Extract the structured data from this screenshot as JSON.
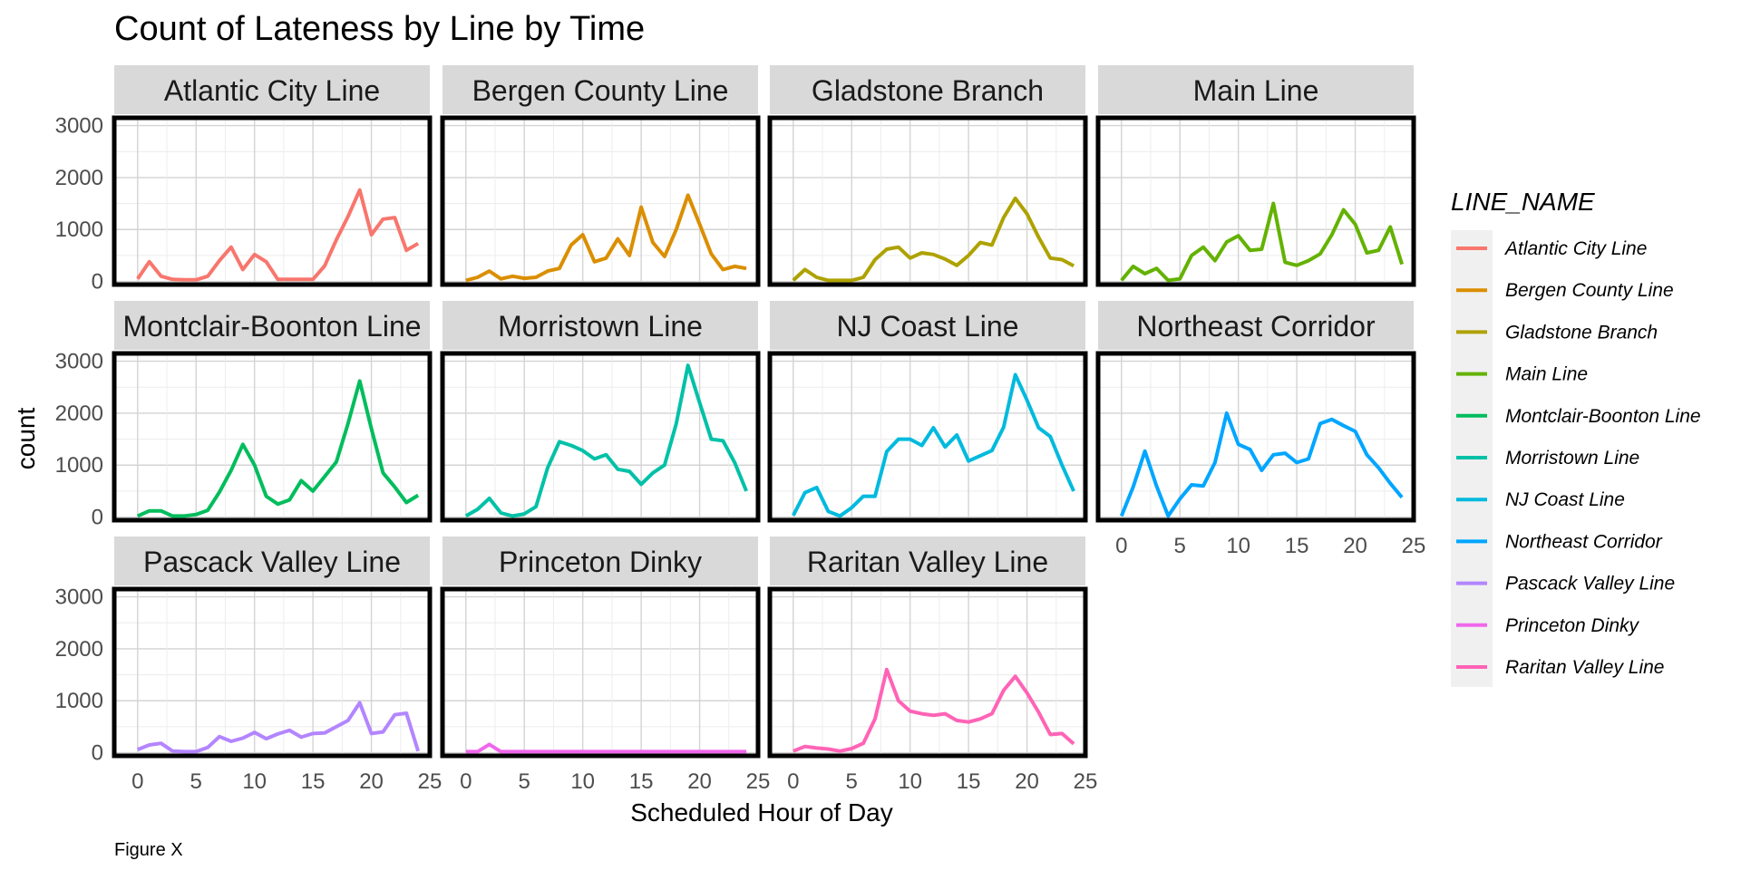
{
  "chart_data": {
    "type": "line",
    "title": "Count of Lateness by Line by Time",
    "caption": "Figure X",
    "xlabel": "Scheduled Hour of Day",
    "ylabel": "count",
    "xlim": [
      -2,
      25
    ],
    "ylim": [
      -60,
      3150
    ],
    "x_ticks": [
      0,
      5,
      10,
      15,
      20,
      25
    ],
    "y_ticks": [
      0,
      1000,
      2000,
      3000
    ],
    "grid": true,
    "facet_layout": "wrap, 4 columns",
    "legend": {
      "title": "LINE_NAME",
      "position": "right",
      "items": [
        "Atlantic City Line",
        "Bergen County Line",
        "Gladstone Branch",
        "Main Line",
        "Montclair-Boonton Line",
        "Morristown Line",
        "NJ Coast Line",
        "Northeast Corridor",
        "Pascack Valley Line",
        "Princeton Dinky",
        "Raritan Valley Line"
      ]
    },
    "x": [
      0,
      1,
      2,
      3,
      4,
      5,
      6,
      7,
      8,
      9,
      10,
      11,
      12,
      13,
      14,
      15,
      16,
      17,
      18,
      19,
      20,
      21,
      22,
      23,
      24
    ],
    "series": [
      {
        "name": "Atlantic City Line",
        "color": "#F8766D",
        "values": [
          50,
          380,
          100,
          40,
          30,
          30,
          100,
          400,
          660,
          230,
          520,
          380,
          40,
          40,
          40,
          40,
          300,
          800,
          1250,
          1760,
          900,
          1200,
          1230,
          600,
          730
        ]
      },
      {
        "name": "Bergen County Line",
        "color": "#DB8E00",
        "values": [
          20,
          80,
          200,
          50,
          100,
          60,
          80,
          200,
          250,
          700,
          900,
          380,
          450,
          820,
          500,
          1430,
          750,
          480,
          1000,
          1660,
          1100,
          530,
          230,
          290,
          250
        ]
      },
      {
        "name": "Gladstone Branch",
        "color": "#AEA200",
        "values": [
          20,
          230,
          80,
          20,
          20,
          20,
          80,
          420,
          620,
          660,
          450,
          550,
          520,
          430,
          310,
          500,
          750,
          700,
          1230,
          1600,
          1300,
          850,
          450,
          420,
          300
        ]
      },
      {
        "name": "Main Line",
        "color": "#64B200",
        "values": [
          20,
          290,
          150,
          250,
          20,
          50,
          500,
          660,
          400,
          760,
          880,
          600,
          620,
          1500,
          370,
          310,
          400,
          530,
          900,
          1380,
          1100,
          550,
          600,
          1050,
          330
        ]
      },
      {
        "name": "Montclair-Boonton Line",
        "color": "#00BD5C",
        "values": [
          20,
          120,
          120,
          20,
          20,
          50,
          130,
          480,
          900,
          1400,
          1000,
          400,
          250,
          330,
          700,
          500,
          780,
          1060,
          1800,
          2620,
          1700,
          850,
          580,
          280,
          420
        ]
      },
      {
        "name": "Morristown Line",
        "color": "#00C1A7",
        "values": [
          20,
          150,
          360,
          80,
          20,
          60,
          200,
          950,
          1450,
          1380,
          1280,
          1120,
          1200,
          920,
          880,
          630,
          850,
          1000,
          1800,
          2920,
          2200,
          1500,
          1470,
          1050,
          500
        ]
      },
      {
        "name": "NJ Coast Line",
        "color": "#00BADE",
        "values": [
          30,
          470,
          570,
          110,
          20,
          180,
          400,
          400,
          1260,
          1500,
          1500,
          1380,
          1720,
          1350,
          1580,
          1080,
          1180,
          1280,
          1730,
          2740,
          2250,
          1720,
          1550,
          1000,
          500
        ]
      },
      {
        "name": "Northeast Corridor",
        "color": "#00A6FF",
        "values": [
          20,
          580,
          1270,
          600,
          20,
          350,
          620,
          600,
          1050,
          2000,
          1400,
          1300,
          900,
          1200,
          1230,
          1050,
          1120,
          1800,
          1880,
          1760,
          1650,
          1200,
          950,
          650,
          380
        ]
      },
      {
        "name": "Pascack Valley Line",
        "color": "#B385FF",
        "values": [
          60,
          150,
          180,
          30,
          20,
          20,
          100,
          310,
          220,
          280,
          390,
          270,
          360,
          430,
          300,
          370,
          380,
          500,
          620,
          960,
          370,
          400,
          730,
          760,
          30
        ]
      },
      {
        "name": "Princeton Dinky",
        "color": "#EF67EB",
        "values": [
          20,
          20,
          160,
          20,
          20,
          20,
          20,
          20,
          20,
          20,
          20,
          20,
          20,
          20,
          20,
          20,
          20,
          20,
          20,
          20,
          20,
          20,
          20,
          20,
          20
        ]
      },
      {
        "name": "Raritan Valley Line",
        "color": "#FF63B6",
        "values": [
          30,
          120,
          90,
          70,
          30,
          80,
          180,
          650,
          1600,
          1000,
          800,
          750,
          720,
          750,
          620,
          590,
          650,
          750,
          1200,
          1470,
          1150,
          780,
          350,
          370,
          170
        ]
      }
    ]
  }
}
